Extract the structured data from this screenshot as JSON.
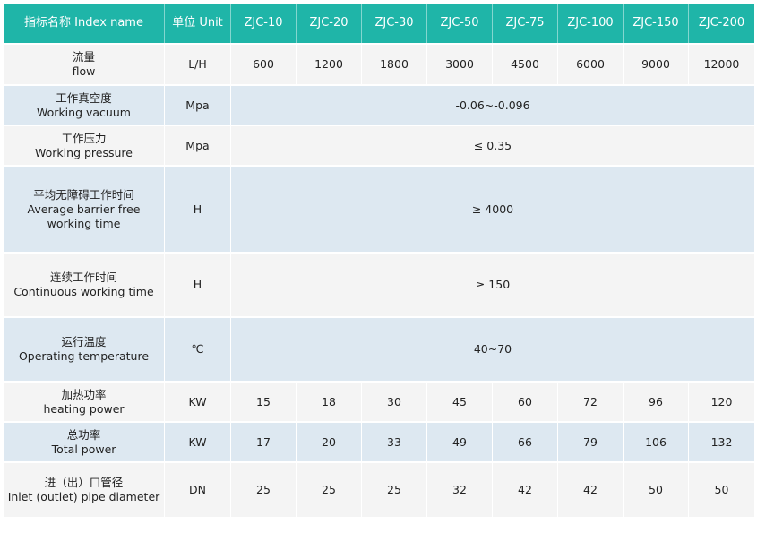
{
  "header": {
    "index_name": "指标名称 Index name",
    "unit": "单位 Unit",
    "models": [
      "ZJC-10",
      "ZJC-20",
      "ZJC-30",
      "ZJC-50",
      "ZJC-75",
      "ZJC-100",
      "ZJC-150",
      "ZJC-200"
    ]
  },
  "rows": {
    "flow": {
      "zh": "流量",
      "en": "flow",
      "unit": "L/H",
      "values": [
        "600",
        "1200",
        "1800",
        "3000",
        "4500",
        "6000",
        "9000",
        "12000"
      ]
    },
    "vacuum": {
      "zh": "工作真空度",
      "en": "Working vacuum",
      "unit": "Mpa",
      "value": "-0.06~-0.096"
    },
    "pressure": {
      "zh": "工作压力",
      "en": "Working pressure",
      "unit": "Mpa",
      "value": "≤ 0.35"
    },
    "barrier": {
      "zh": "平均无障碍工作时间",
      "en1": "Average barrier free",
      "en2": "working time",
      "unit": "H",
      "value": "≥ 4000"
    },
    "continuous": {
      "zh": "连续工作时间",
      "en": "Continuous working time",
      "unit": "H",
      "value": "≥ 150"
    },
    "temperature": {
      "zh": "运行温度",
      "en": "Operating temperature",
      "unit": "℃",
      "value": "40~70"
    },
    "heating": {
      "zh": "加热功率",
      "en": "heating power",
      "unit": "KW",
      "values": [
        "15",
        "18",
        "30",
        "45",
        "60",
        "72",
        "96",
        "120"
      ]
    },
    "total": {
      "zh": "总功率",
      "en": "Total power",
      "unit": "KW",
      "values": [
        "17",
        "20",
        "33",
        "49",
        "66",
        "79",
        "106",
        "132"
      ]
    },
    "pipe": {
      "zh": "进（出）口管径",
      "en": "Inlet (outlet) pipe diameter",
      "unit": "DN",
      "values": [
        "25",
        "25",
        "25",
        "32",
        "42",
        "42",
        "50",
        "50"
      ]
    }
  }
}
